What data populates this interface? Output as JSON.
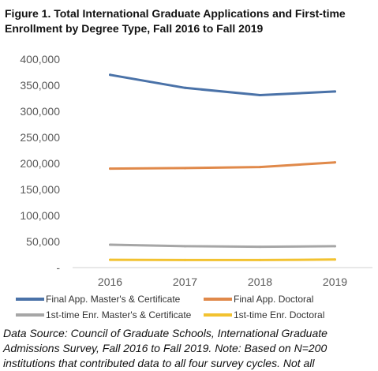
{
  "figure": {
    "title_line1": "Figure 1. Total International Graduate Applications and First-time",
    "title_line2": "Enrollment by Degree Type, Fall 2016 to Fall 2019",
    "source_line1": "Data Source: Council of Graduate Schools, International Graduate",
    "source_line2": "Admissions Survey, Fall 2016 to Fall 2019. Note: Based on N=200",
    "source_line3": "institutions that contributed data to all four survey cycles. Not all"
  },
  "chart_data": {
    "type": "line",
    "x": [
      "2016",
      "2017",
      "2018",
      "2019"
    ],
    "ylim": [
      0,
      400000
    ],
    "yticks": [
      0,
      50000,
      100000,
      150000,
      200000,
      250000,
      300000,
      350000,
      400000
    ],
    "ytick_labels": [
      "-",
      "50,000",
      "100,000",
      "150,000",
      "200,000",
      "250,000",
      "300,000",
      "350,000",
      "400,000"
    ],
    "grid": false,
    "legend_position": "bottom",
    "series": [
      {
        "name": "Final App. Master's & Certificate",
        "color": "#4a72a8",
        "values": [
          370000,
          345000,
          331000,
          338000
        ]
      },
      {
        "name": "Final App. Doctoral",
        "color": "#e0894a",
        "values": [
          190000,
          191000,
          193000,
          202000
        ]
      },
      {
        "name": "1st-time Enr. Master's & Certificate",
        "color": "#a6a6a6",
        "values": [
          44000,
          41000,
          40000,
          41000
        ]
      },
      {
        "name": "1st-time Enr. Doctoral",
        "color": "#f2c230",
        "values": [
          15000,
          14500,
          14500,
          15500
        ]
      }
    ]
  }
}
